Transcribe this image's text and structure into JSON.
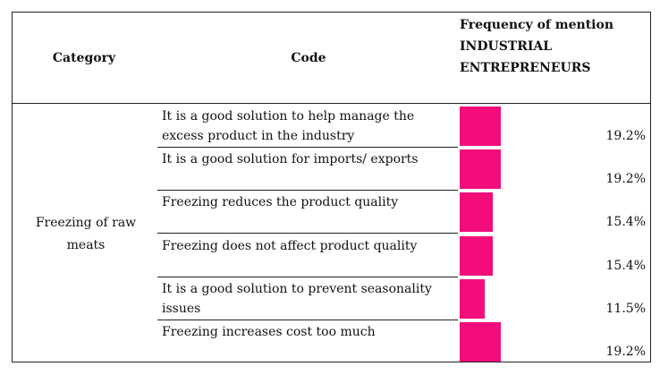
{
  "header": {
    "category": "Category",
    "code": "Code",
    "frequency_lines": [
      "Frequency of mention",
      "INDUSTRIAL",
      "ENTREPRENEURS"
    ]
  },
  "category": {
    "name_lines": [
      "Freezing of raw",
      "meats"
    ]
  },
  "rows": [
    {
      "code_lines": [
        "It is a good solution to help manage the",
        "excess product in the industry"
      ],
      "value": 19.2,
      "label": "19.2%"
    },
    {
      "code_lines": [
        "It is a good solution for imports/ exports"
      ],
      "value": 19.2,
      "label": "19.2%"
    },
    {
      "code_lines": [
        "Freezing reduces the product quality"
      ],
      "value": 15.4,
      "label": "15.4%"
    },
    {
      "code_lines": [
        "Freezing does not affect product quality"
      ],
      "value": 15.4,
      "label": "15.4%"
    },
    {
      "code_lines": [
        "It is a good solution to prevent seasonality",
        "issues"
      ],
      "value": 11.5,
      "label": "11.5%"
    },
    {
      "code_lines": [
        "Freezing increases cost too much"
      ],
      "value": 19.2,
      "label": "19.2%"
    }
  ],
  "colors": {
    "bar": "#f20d7a"
  }
}
